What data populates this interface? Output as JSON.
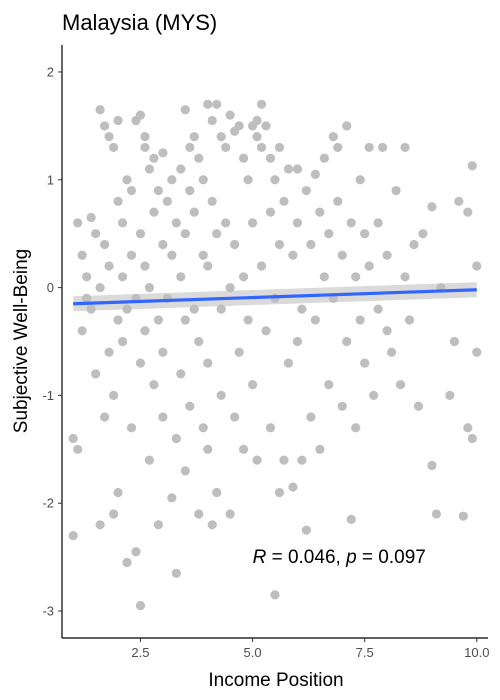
{
  "chart_data": {
    "type": "scatter",
    "title": "Malaysia (MYS)",
    "xlabel": "Income Position",
    "ylabel": "Subjective Well-Being",
    "xlim": [
      0.75,
      10.25
    ],
    "ylim": [
      -3.25,
      2.25
    ],
    "x_ticks": [
      2.5,
      5.0,
      7.5,
      10.0
    ],
    "x_tick_labels": [
      "2.5",
      "5.0",
      "7.5",
      "10.0"
    ],
    "y_ticks": [
      -3,
      -2,
      -1,
      0,
      1,
      2
    ],
    "y_tick_labels": [
      "-3",
      "-2",
      "-1",
      "0",
      "1",
      "2"
    ],
    "grid": false,
    "point_color": "#bebebe",
    "line_color": "#3366ff",
    "ribbon_color": "#d3d3d3",
    "regression": {
      "x": [
        1.0,
        10.0
      ],
      "y": [
        -0.15,
        -0.02
      ],
      "se_band": [
        [
          -0.22,
          -0.08
        ],
        [
          -0.09,
          0.05
        ]
      ]
    },
    "annotation": {
      "r_symbol": "R",
      "r_text": " = 0.046, ",
      "p_symbol": "p",
      "p_text": " = 0.097",
      "x": 5.0,
      "y": -2.5
    },
    "points": [
      [
        1.0,
        -2.3
      ],
      [
        1.0,
        -1.4
      ],
      [
        1.1,
        -1.5
      ],
      [
        1.1,
        0.6
      ],
      [
        1.2,
        0.3
      ],
      [
        1.2,
        -0.4
      ],
      [
        1.3,
        0.1
      ],
      [
        1.3,
        -0.1
      ],
      [
        1.4,
        0.65
      ],
      [
        1.4,
        -0.2
      ],
      [
        1.5,
        0.5
      ],
      [
        1.5,
        -0.8
      ],
      [
        1.6,
        1.65
      ],
      [
        1.6,
        0.0
      ],
      [
        1.6,
        -2.2
      ],
      [
        1.7,
        1.5
      ],
      [
        1.7,
        -1.2
      ],
      [
        1.7,
        0.4
      ],
      [
        1.8,
        1.4
      ],
      [
        1.8,
        -0.6
      ],
      [
        1.8,
        0.2
      ],
      [
        1.9,
        1.3
      ],
      [
        1.9,
        -1.0
      ],
      [
        1.9,
        -2.1
      ],
      [
        2.0,
        1.55
      ],
      [
        2.0,
        0.8
      ],
      [
        2.0,
        -0.3
      ],
      [
        2.0,
        -1.9
      ],
      [
        2.1,
        0.1
      ],
      [
        2.1,
        -0.5
      ],
      [
        2.1,
        0.6
      ],
      [
        2.2,
        -2.55
      ],
      [
        2.2,
        1.0
      ],
      [
        2.2,
        -0.2
      ],
      [
        2.3,
        0.3
      ],
      [
        2.3,
        -1.3
      ],
      [
        2.3,
        0.9
      ],
      [
        2.4,
        1.55
      ],
      [
        2.4,
        -0.1
      ],
      [
        2.4,
        -2.45
      ],
      [
        2.5,
        1.6
      ],
      [
        2.5,
        -2.95
      ],
      [
        2.5,
        0.5
      ],
      [
        2.5,
        -0.7
      ],
      [
        2.6,
        1.4
      ],
      [
        2.6,
        1.3
      ],
      [
        2.6,
        -0.4
      ],
      [
        2.6,
        0.2
      ],
      [
        2.7,
        1.1
      ],
      [
        2.7,
        -1.6
      ],
      [
        2.7,
        0.0
      ],
      [
        2.8,
        1.2
      ],
      [
        2.8,
        -0.9
      ],
      [
        2.8,
        0.7
      ],
      [
        2.9,
        -2.2
      ],
      [
        2.9,
        0.9
      ],
      [
        2.9,
        -0.3
      ],
      [
        3.0,
        1.25
      ],
      [
        3.0,
        -1.2
      ],
      [
        3.0,
        0.4
      ],
      [
        3.0,
        -0.6
      ],
      [
        3.1,
        0.8
      ],
      [
        3.1,
        -0.1
      ],
      [
        3.2,
        -1.95
      ],
      [
        3.2,
        1.0
      ],
      [
        3.2,
        0.3
      ],
      [
        3.3,
        -2.65
      ],
      [
        3.3,
        -1.4
      ],
      [
        3.3,
        0.6
      ],
      [
        3.4,
        1.1
      ],
      [
        3.4,
        -0.8
      ],
      [
        3.4,
        0.1
      ],
      [
        3.5,
        1.65
      ],
      [
        3.5,
        -1.7
      ],
      [
        3.5,
        0.5
      ],
      [
        3.5,
        -0.3
      ],
      [
        3.6,
        1.3
      ],
      [
        3.6,
        0.9
      ],
      [
        3.6,
        -1.1
      ],
      [
        3.7,
        1.4
      ],
      [
        3.7,
        -0.2
      ],
      [
        3.7,
        0.7
      ],
      [
        3.8,
        -2.1
      ],
      [
        3.8,
        1.2
      ],
      [
        3.8,
        -0.5
      ],
      [
        3.9,
        1.0
      ],
      [
        3.9,
        0.3
      ],
      [
        3.9,
        -1.3
      ],
      [
        4.0,
        1.7
      ],
      [
        4.0,
        -1.5
      ],
      [
        4.0,
        0.2
      ],
      [
        4.0,
        -0.7
      ],
      [
        4.1,
        1.55
      ],
      [
        4.1,
        -2.2
      ],
      [
        4.1,
        0.8
      ],
      [
        4.2,
        1.7
      ],
      [
        4.2,
        -1.9
      ],
      [
        4.2,
        0.5
      ],
      [
        4.3,
        1.4
      ],
      [
        4.3,
        -0.2
      ],
      [
        4.3,
        -1.0
      ],
      [
        4.4,
        1.3
      ],
      [
        4.4,
        0.6
      ],
      [
        4.5,
        1.6
      ],
      [
        4.5,
        -2.1
      ],
      [
        4.5,
        0.0
      ],
      [
        4.6,
        1.45
      ],
      [
        4.6,
        -1.2
      ],
      [
        4.6,
        0.4
      ],
      [
        4.7,
        1.5
      ],
      [
        4.7,
        -0.6
      ],
      [
        4.8,
        1.2
      ],
      [
        4.8,
        0.1
      ],
      [
        4.8,
        -1.5
      ],
      [
        4.9,
        1.0
      ],
      [
        4.9,
        -0.3
      ],
      [
        5.0,
        1.5
      ],
      [
        5.0,
        0.6
      ],
      [
        5.0,
        -0.9
      ],
      [
        5.1,
        1.55
      ],
      [
        5.1,
        1.4
      ],
      [
        5.1,
        -1.6
      ],
      [
        5.2,
        1.7
      ],
      [
        5.2,
        1.3
      ],
      [
        5.2,
        0.2
      ],
      [
        5.3,
        1.5
      ],
      [
        5.3,
        -0.4
      ],
      [
        5.4,
        1.2
      ],
      [
        5.4,
        0.7
      ],
      [
        5.4,
        -1.3
      ],
      [
        5.5,
        -2.85
      ],
      [
        5.5,
        1.0
      ],
      [
        5.5,
        -0.1
      ],
      [
        5.6,
        1.3
      ],
      [
        5.6,
        -1.9
      ],
      [
        5.6,
        0.4
      ],
      [
        5.7,
        -1.6
      ],
      [
        5.7,
        0.8
      ],
      [
        5.8,
        1.1
      ],
      [
        5.8,
        -0.7
      ],
      [
        5.9,
        -1.85
      ],
      [
        5.9,
        0.3
      ],
      [
        6.0,
        1.1
      ],
      [
        6.0,
        -0.5
      ],
      [
        6.0,
        0.6
      ],
      [
        6.1,
        -1.6
      ],
      [
        6.1,
        -0.2
      ],
      [
        6.2,
        -2.25
      ],
      [
        6.2,
        0.9
      ],
      [
        6.3,
        0.4
      ],
      [
        6.3,
        -1.2
      ],
      [
        6.4,
        1.05
      ],
      [
        6.4,
        -0.3
      ],
      [
        6.5,
        0.7
      ],
      [
        6.5,
        -1.5
      ],
      [
        6.6,
        1.2
      ],
      [
        6.6,
        0.1
      ],
      [
        6.7,
        0.5
      ],
      [
        6.7,
        -0.9
      ],
      [
        6.8,
        1.4
      ],
      [
        6.8,
        -0.1
      ],
      [
        6.9,
        1.3
      ],
      [
        6.9,
        0.8
      ],
      [
        7.0,
        -1.1
      ],
      [
        7.0,
        0.3
      ],
      [
        7.1,
        1.5
      ],
      [
        7.1,
        -0.5
      ],
      [
        7.2,
        -2.15
      ],
      [
        7.2,
        0.6
      ],
      [
        7.3,
        0.1
      ],
      [
        7.3,
        -1.3
      ],
      [
        7.4,
        1.0
      ],
      [
        7.4,
        -0.3
      ],
      [
        7.5,
        0.5
      ],
      [
        7.5,
        -0.7
      ],
      [
        7.6,
        1.3
      ],
      [
        7.6,
        0.2
      ],
      [
        7.7,
        -1.0
      ],
      [
        7.8,
        0.6
      ],
      [
        7.8,
        -0.2
      ],
      [
        7.9,
        1.3
      ],
      [
        8.0,
        -0.4
      ],
      [
        8.0,
        0.3
      ],
      [
        8.1,
        -0.6
      ],
      [
        8.2,
        0.9
      ],
      [
        8.3,
        -0.9
      ],
      [
        8.4,
        1.3
      ],
      [
        8.4,
        0.1
      ],
      [
        8.5,
        -0.3
      ],
      [
        8.6,
        0.4
      ],
      [
        8.7,
        -1.1
      ],
      [
        8.8,
        0.5
      ],
      [
        9.0,
        0.75
      ],
      [
        9.0,
        -1.65
      ],
      [
        9.1,
        -2.1
      ],
      [
        9.2,
        0.0
      ],
      [
        9.4,
        -1.0
      ],
      [
        9.5,
        -0.5
      ],
      [
        9.6,
        0.8
      ],
      [
        9.7,
        -2.12
      ],
      [
        9.8,
        0.7
      ],
      [
        9.8,
        -1.3
      ],
      [
        9.9,
        -1.4
      ],
      [
        9.9,
        1.13
      ],
      [
        10.0,
        -0.6
      ],
      [
        10.0,
        0.2
      ]
    ]
  }
}
